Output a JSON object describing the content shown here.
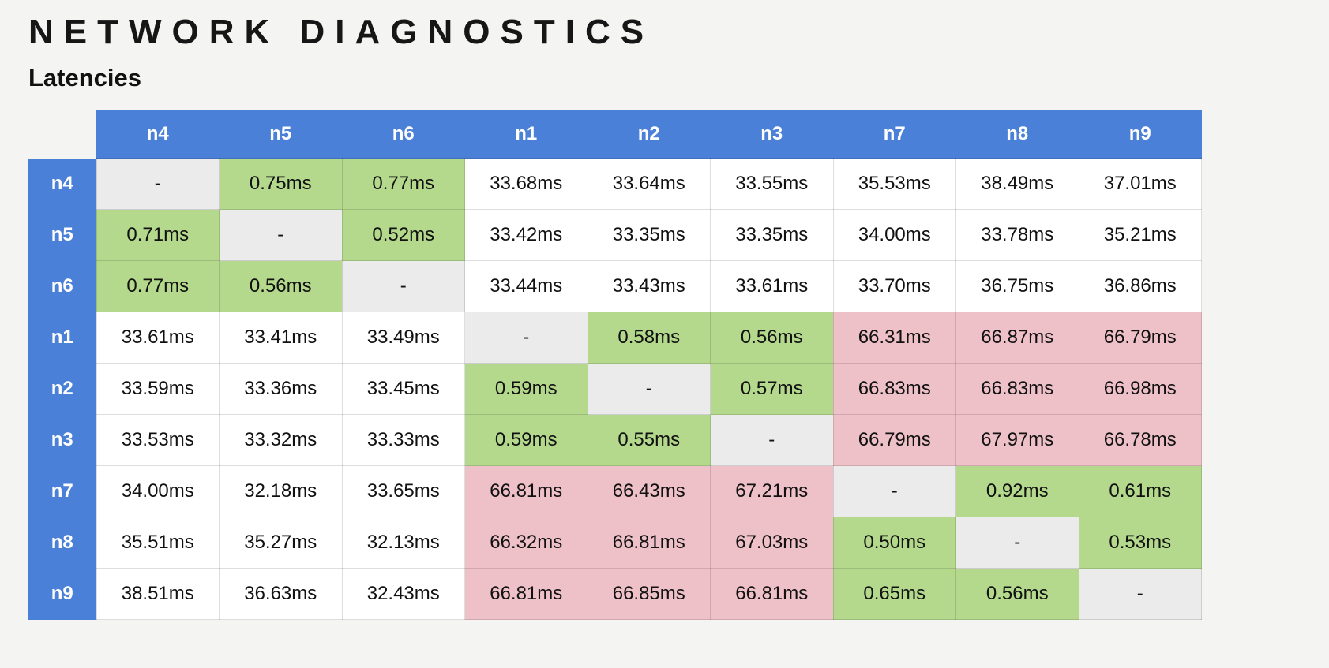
{
  "header": {
    "title": "NETWORK DIAGNOSTICS",
    "subtitle": "Latencies"
  },
  "colors": {
    "header_blue": "#4a80d8",
    "fast_green": "#b4d98c",
    "slow_pink": "#eec0c7",
    "self_gray": "#ebebeb",
    "page_background": "#f4f4f3",
    "cell_white": "#ffffff",
    "header_text": "#ffffff",
    "cell_text": "#111111"
  },
  "chart_data": {
    "type": "heatmap",
    "title": "NETWORK DIAGNOSTICS",
    "subtitle": "Latencies",
    "unit": "ms",
    "legend_position": "none",
    "grid": true,
    "columns": [
      "n4",
      "n5",
      "n6",
      "n1",
      "n2",
      "n3",
      "n7",
      "n8",
      "n9"
    ],
    "rows": [
      {
        "label": "n4",
        "values": [
          "-",
          "0.75ms",
          "0.77ms",
          "33.68ms",
          "33.64ms",
          "33.55ms",
          "35.53ms",
          "38.49ms",
          "37.01ms"
        ]
      },
      {
        "label": "n5",
        "values": [
          "0.71ms",
          "-",
          "0.52ms",
          "33.42ms",
          "33.35ms",
          "33.35ms",
          "34.00ms",
          "33.78ms",
          "35.21ms"
        ]
      },
      {
        "label": "n6",
        "values": [
          "0.77ms",
          "0.56ms",
          "-",
          "33.44ms",
          "33.43ms",
          "33.61ms",
          "33.70ms",
          "36.75ms",
          "36.86ms"
        ]
      },
      {
        "label": "n1",
        "values": [
          "33.61ms",
          "33.41ms",
          "33.49ms",
          "-",
          "0.58ms",
          "0.56ms",
          "66.31ms",
          "66.87ms",
          "66.79ms"
        ]
      },
      {
        "label": "n2",
        "values": [
          "33.59ms",
          "33.36ms",
          "33.45ms",
          "0.59ms",
          "-",
          "0.57ms",
          "66.83ms",
          "66.83ms",
          "66.98ms"
        ]
      },
      {
        "label": "n3",
        "values": [
          "33.53ms",
          "33.32ms",
          "33.33ms",
          "0.59ms",
          "0.55ms",
          "-",
          "66.79ms",
          "67.97ms",
          "66.78ms"
        ]
      },
      {
        "label": "n7",
        "values": [
          "34.00ms",
          "32.18ms",
          "33.65ms",
          "66.81ms",
          "66.43ms",
          "67.21ms",
          "-",
          "0.92ms",
          "0.61ms"
        ]
      },
      {
        "label": "n8",
        "values": [
          "35.51ms",
          "35.27ms",
          "32.13ms",
          "66.32ms",
          "66.81ms",
          "67.03ms",
          "0.50ms",
          "-",
          "0.53ms"
        ]
      },
      {
        "label": "n9",
        "values": [
          "38.51ms",
          "36.63ms",
          "32.43ms",
          "66.81ms",
          "66.85ms",
          "66.81ms",
          "0.65ms",
          "0.56ms",
          "-"
        ]
      }
    ],
    "cell_color_rule": {
      "self_cells": "-",
      "fast_below_ms": 1,
      "slow_above_ms": 60,
      "fast_color": "#b4d98c",
      "normal_color": "#ffffff",
      "slow_color": "#eec0c7",
      "self_color": "#ebebeb"
    }
  }
}
